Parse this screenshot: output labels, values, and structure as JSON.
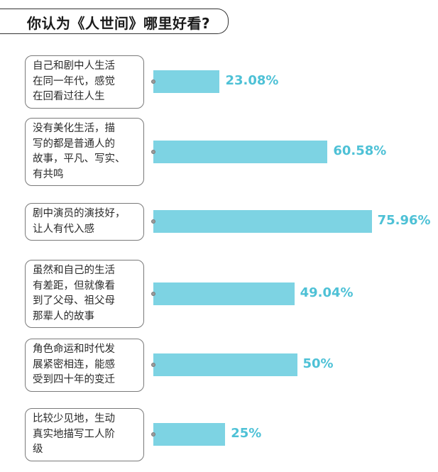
{
  "title": "你认为《人世间》哪里好看?",
  "colors": {
    "bar": "#7dd3e3",
    "value_label": "#4ec1d6",
    "border": "#7a7a7a"
  },
  "chart_data": {
    "type": "bar",
    "orientation": "horizontal",
    "title": "你认为《人世间》哪里好看?",
    "unit": "%",
    "categories": [
      "自己和剧中人生活\n在同一年代，感觉\n在回看过往人生",
      "没有美化生活，描\n写的都是普通人的\n故事，平凡、写实、\n有共鸣",
      "剧中演员的演技好，\n让人有代入感",
      "虽然和自己的生活\n有差距，但就像看\n到了父母、祖父母\n那辈人的故事",
      "角色命运和时代发\n展紧密相连，能感\n受到四十年的变迁",
      "比较少见地，生动\n真实地描写工人阶\n级"
    ],
    "values": [
      23.08,
      60.58,
      75.96,
      49.04,
      50,
      25
    ],
    "value_labels": [
      "23.08%",
      "60.58%",
      "75.96%",
      "49.04%",
      "50%",
      "25%"
    ],
    "xlim": [
      0,
      100
    ],
    "grid": false,
    "legend": "none"
  }
}
